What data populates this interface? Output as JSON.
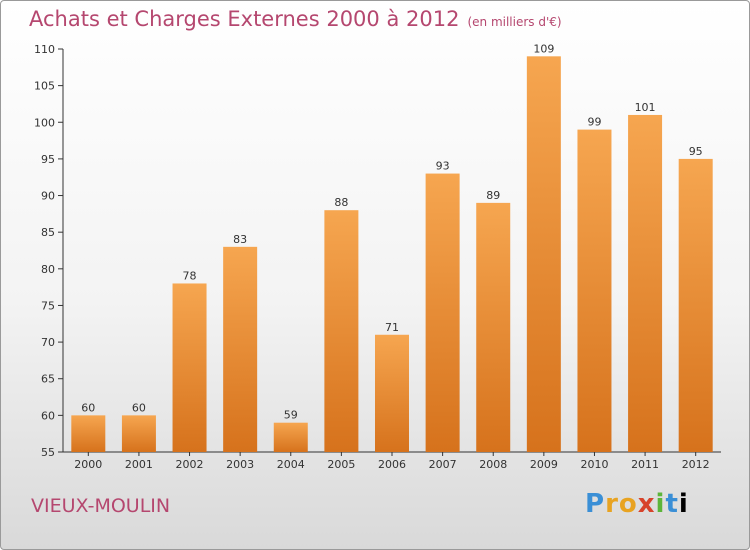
{
  "title": "Achats et Charges Externes 2000 à 2012",
  "unit": "(en milliers d'€)",
  "commune": "VIEUX-MOULIN",
  "logo": [
    "P",
    "r",
    "o",
    "x",
    "i",
    "t",
    "i"
  ],
  "colors": {
    "bar_top": "#f6a650",
    "bar_bottom": "#d6721c",
    "title": "#b5476f"
  },
  "chart_data": {
    "type": "bar",
    "categories": [
      "2000",
      "2001",
      "2002",
      "2003",
      "2004",
      "2005",
      "2006",
      "2007",
      "2008",
      "2009",
      "2010",
      "2011",
      "2012"
    ],
    "values": [
      60,
      60,
      78,
      83,
      59,
      88,
      71,
      93,
      89,
      109,
      99,
      101,
      95
    ],
    "ylim": [
      55,
      110
    ],
    "yticks": [
      55,
      60,
      65,
      70,
      75,
      80,
      85,
      90,
      95,
      100,
      105,
      110
    ],
    "grid": false,
    "xlabel": "",
    "ylabel": ""
  }
}
